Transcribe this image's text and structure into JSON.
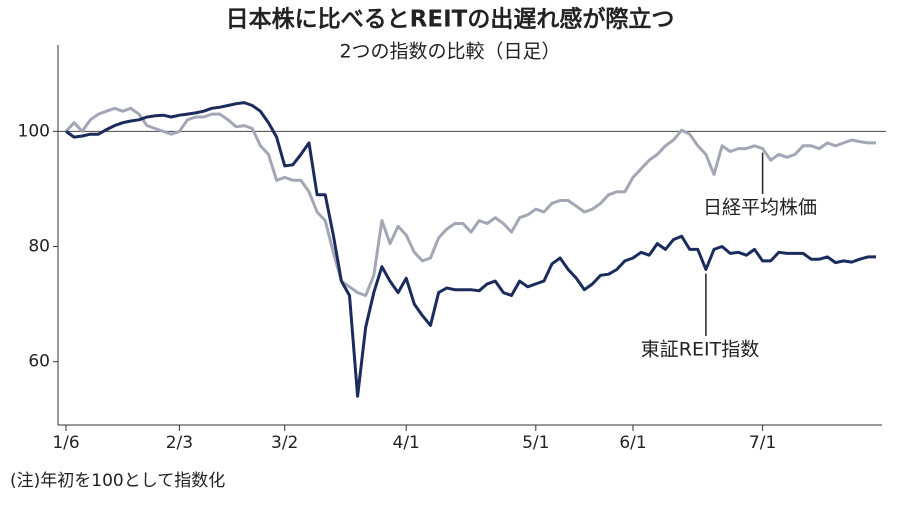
{
  "chart_data": {
    "type": "line",
    "title": "日本株に比べるとREITの出遅れ感が際立つ",
    "subtitle": "2つの指数の比較（日足）",
    "note": "(注)年初を100として指数化",
    "categories": [
      "1/6",
      null,
      null,
      null,
      null,
      null,
      null,
      null,
      null,
      null,
      null,
      null,
      null,
      null,
      "2/3",
      null,
      null,
      null,
      null,
      null,
      null,
      null,
      null,
      null,
      null,
      null,
      null,
      "3/2",
      null,
      null,
      null,
      null,
      null,
      null,
      null,
      null,
      null,
      null,
      null,
      null,
      null,
      null,
      "4/1",
      null,
      null,
      null,
      null,
      null,
      null,
      null,
      null,
      null,
      null,
      null,
      null,
      null,
      null,
      null,
      "5/1",
      null,
      null,
      null,
      null,
      null,
      null,
      null,
      null,
      null,
      null,
      null,
      "6/1",
      null,
      null,
      null,
      null,
      null,
      null,
      null,
      null,
      null,
      null,
      null,
      null,
      null,
      null,
      null,
      "7/1",
      null,
      null,
      null,
      null,
      null,
      null,
      null,
      null,
      null,
      null,
      null,
      null,
      null,
      null
    ],
    "series": [
      {
        "name": "日経平均株価",
        "color": "#a3a6b4",
        "values": [
          100,
          101.5,
          100,
          102,
          103,
          103.5,
          104,
          103.5,
          104,
          103,
          101,
          100.5,
          100,
          99.5,
          100,
          102,
          102.5,
          102.5,
          103,
          103,
          102,
          100.8,
          101,
          100.5,
          97.5,
          96,
          91.5,
          92,
          91.5,
          91.5,
          89.5,
          86,
          84.5,
          79,
          74,
          73,
          72,
          71.5,
          75,
          84.5,
          80.5,
          83.5,
          82,
          79,
          77.5,
          78,
          81.5,
          83,
          84,
          84,
          82.5,
          84.5,
          84,
          85,
          84,
          82.5,
          85,
          85.5,
          86.5,
          86,
          87.5,
          88,
          88,
          87,
          86,
          86.5,
          87.5,
          89,
          89.5,
          89.5,
          92,
          93.5,
          95,
          96,
          97.5,
          98.5,
          100.2,
          99.5,
          97.5,
          96,
          92.5,
          97.5,
          96.5,
          97,
          97,
          97.5,
          97,
          95,
          96,
          95.5,
          96,
          97.5,
          97.5,
          97,
          98,
          97.5,
          98,
          98.5,
          98.2,
          98,
          98
        ]
      },
      {
        "name": "東証REIT指数",
        "color": "#1b2b5c",
        "values": [
          100,
          99,
          99.2,
          99.5,
          99.5,
          100.3,
          101,
          101.5,
          101.8,
          102,
          102.5,
          102.7,
          102.8,
          102.5,
          102.8,
          103,
          103.2,
          103.5,
          104,
          104.2,
          104.5,
          104.8,
          105,
          104.5,
          103.5,
          101.5,
          99,
          94,
          94.2,
          96,
          98,
          89,
          89,
          82,
          74,
          71.5,
          54,
          66,
          72,
          76.5,
          74,
          72,
          74.5,
          70,
          68,
          66.3,
          72,
          72.8,
          72.5,
          72.5,
          72.5,
          72.3,
          73.5,
          74,
          72,
          71.5,
          74,
          73,
          73.5,
          74,
          77,
          78,
          76,
          74.5,
          72.5,
          73.5,
          75,
          75.2,
          76,
          77.5,
          78,
          79,
          78.5,
          80.5,
          79.5,
          81.2,
          81.8,
          79.5,
          79.5,
          76,
          79.5,
          80,
          78.8,
          79,
          78.5,
          79.5,
          77.5,
          77.5,
          79,
          78.8,
          78.8,
          78.8,
          77.8,
          77.8,
          78.2,
          77.2,
          77.5,
          77.3,
          77.8,
          78.2,
          78.2
        ]
      }
    ],
    "ylim": [
      49,
      115
    ],
    "yticks": [
      60,
      80,
      100
    ],
    "reference_line": 100,
    "grid": false
  }
}
